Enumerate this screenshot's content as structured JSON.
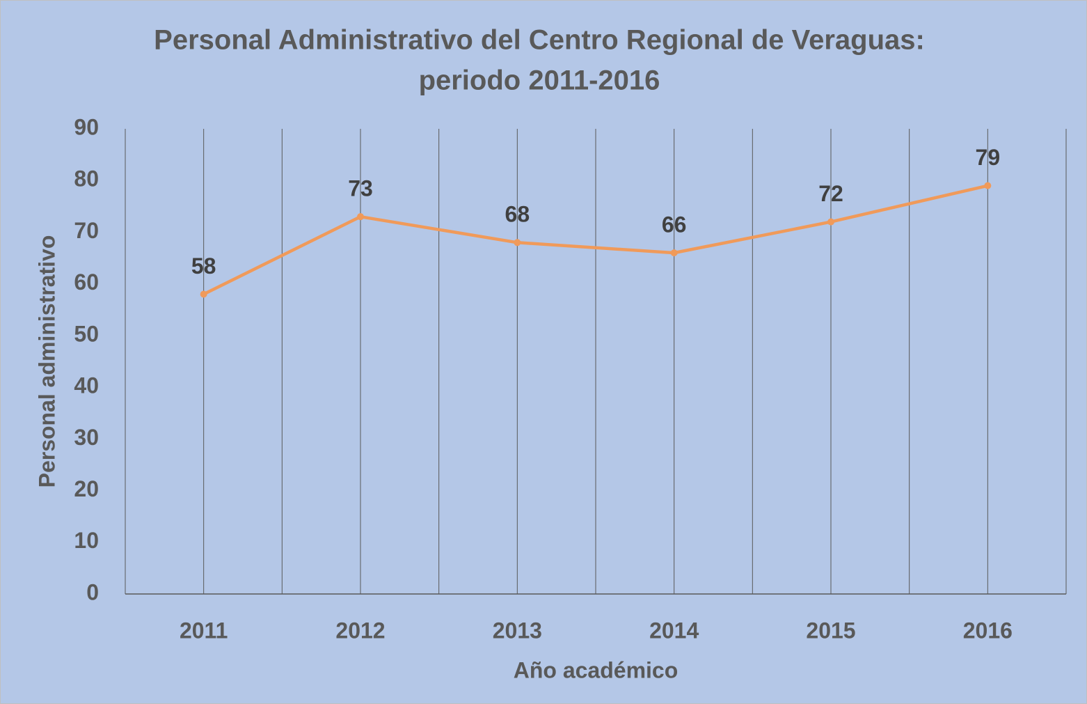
{
  "chart_data": {
    "type": "line",
    "title": [
      "Personal Administrativo del Centro Regional de Veraguas:",
      "periodo 2011-2016"
    ],
    "x_label": "Año académico",
    "y_label": "Personal administrativo",
    "categories": [
      "2011",
      "2012",
      "2013",
      "2014",
      "2015",
      "2016"
    ],
    "values": [
      58,
      73,
      68,
      66,
      72,
      79
    ],
    "color": "#f09a5a",
    "ylim": [
      0,
      90
    ],
    "yticks": [
      0,
      10,
      20,
      30,
      40,
      50,
      60,
      70,
      80,
      90
    ],
    "data_labels": true
  }
}
